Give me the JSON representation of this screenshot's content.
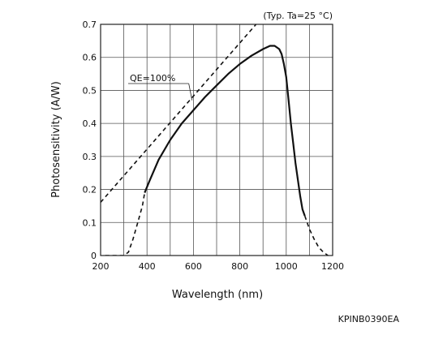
{
  "chart_data": {
    "type": "line",
    "note": "(Typ. Ta=25 °C)",
    "xlabel": "Wavelength (nm)",
    "ylabel": "Photosensitivity (A/W)",
    "xlim": [
      200,
      1200
    ],
    "ylim": [
      0,
      0.7
    ],
    "xticks": [
      200,
      400,
      600,
      800,
      1000,
      1200
    ],
    "xtick_labels": [
      "200",
      "400",
      "600",
      "800",
      "1000",
      "1200"
    ],
    "yticks": [
      0,
      0.1,
      0.2,
      0.3,
      0.4,
      0.5,
      0.6,
      0.7
    ],
    "ytick_labels": [
      "0",
      "0.1",
      "0.2",
      "0.3",
      "0.4",
      "0.5",
      "0.6",
      "0.7"
    ],
    "x_grid_step": 100,
    "y_grid_step": 0.1,
    "grid": true,
    "qe_label": "QE=100%",
    "qe_label_anchor": {
      "x": 580,
      "y": 0.47
    },
    "figure_code": "KPINB0390EA",
    "series": [
      {
        "style": "solid",
        "x": [
          390,
          410,
          450,
          500,
          550,
          600,
          650,
          700,
          750,
          800,
          850,
          900,
          930,
          950,
          970,
          980,
          990,
          1000,
          1010,
          1020,
          1030,
          1040,
          1050,
          1060,
          1070,
          1080
        ],
        "y": [
          0.19,
          0.225,
          0.29,
          0.35,
          0.4,
          0.44,
          0.48,
          0.515,
          0.55,
          0.58,
          0.605,
          0.625,
          0.635,
          0.635,
          0.625,
          0.61,
          0.58,
          0.54,
          0.47,
          0.4,
          0.34,
          0.28,
          0.23,
          0.18,
          0.14,
          0.12
        ]
      },
      {
        "style": "dashed",
        "x": [
          220,
          300,
          320,
          340,
          360,
          380,
          390
        ],
        "y": [
          0,
          0,
          0.01,
          0.05,
          0.1,
          0.15,
          0.19
        ]
      },
      {
        "style": "dashed",
        "x": [
          1080,
          1100,
          1120,
          1140,
          1160,
          1180
        ],
        "y": [
          0.12,
          0.08,
          0.05,
          0.025,
          0.01,
          0
        ]
      },
      {
        "style": "dashed",
        "x": [
          200,
          870
        ],
        "y": [
          0.161,
          0.7
        ]
      }
    ]
  }
}
